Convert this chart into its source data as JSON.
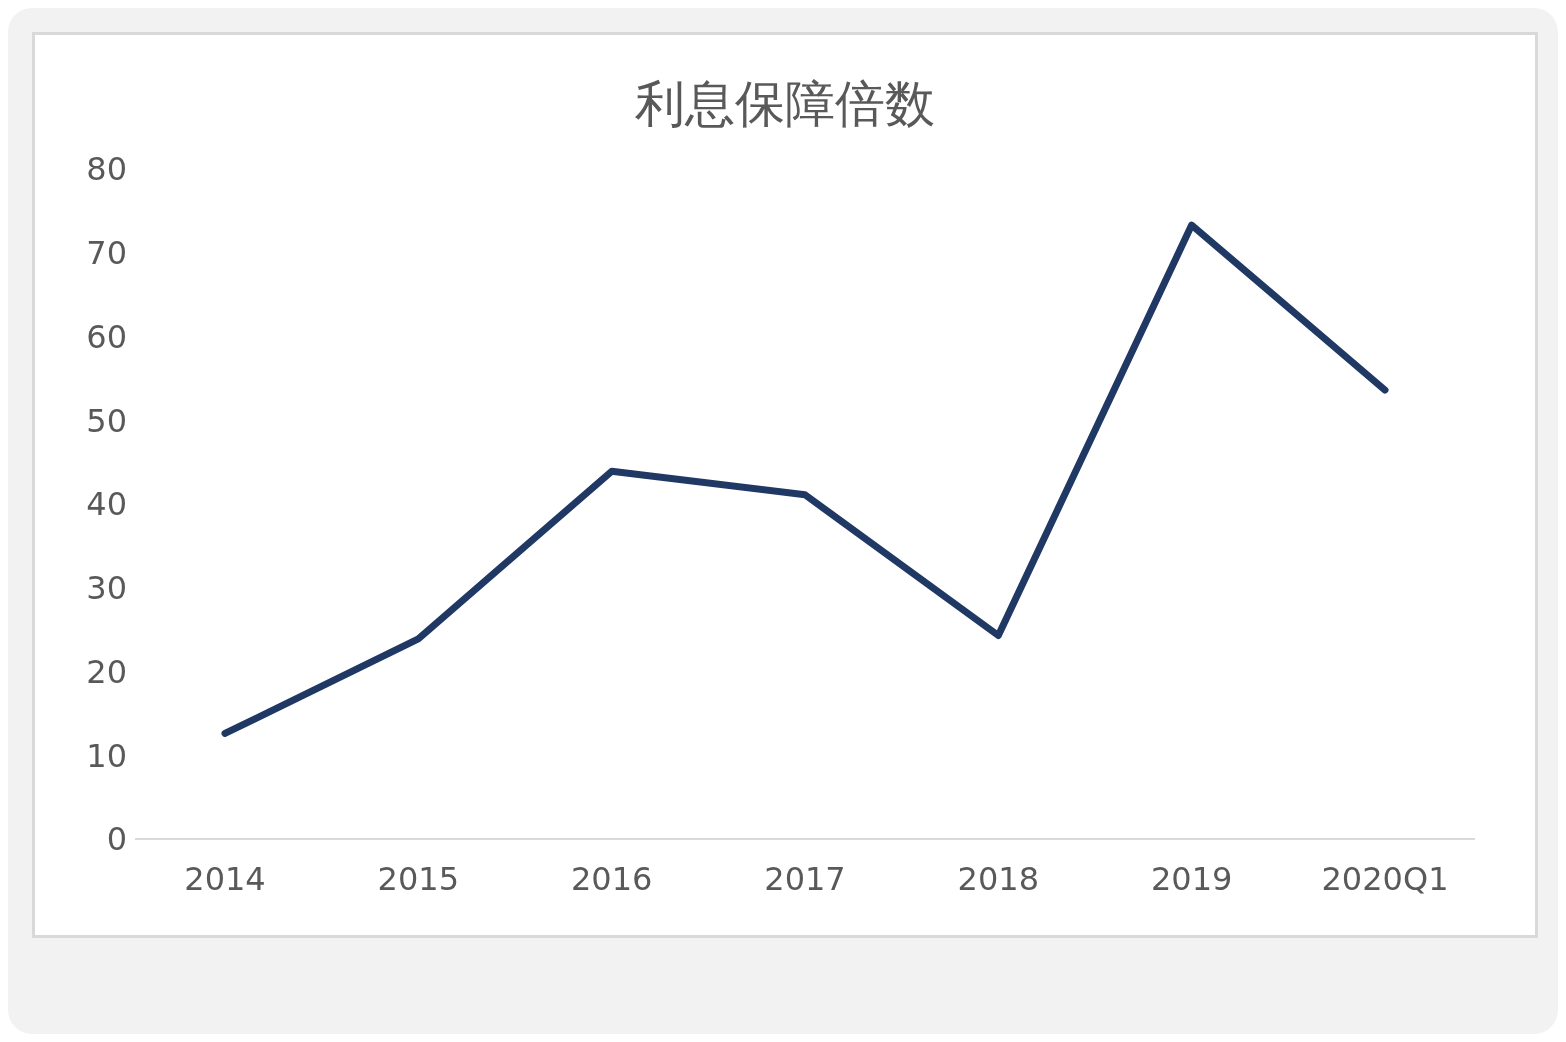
{
  "chart_data": {
    "type": "line",
    "title": "利息保障倍数",
    "categories": [
      "2014",
      "2015",
      "2016",
      "2017",
      "2018",
      "2019",
      "2020Q1"
    ],
    "series": [
      {
        "color": "#203864",
        "values": [
          12.6,
          23.9,
          43.9,
          41.1,
          24.3,
          73.3,
          53.6
        ]
      }
    ],
    "ylim": [
      0,
      80
    ],
    "yticks": [
      0,
      10,
      20,
      30,
      40,
      50,
      60,
      70,
      80
    ],
    "grid": false,
    "legend": false,
    "marker": "none",
    "line_style": "solid"
  }
}
